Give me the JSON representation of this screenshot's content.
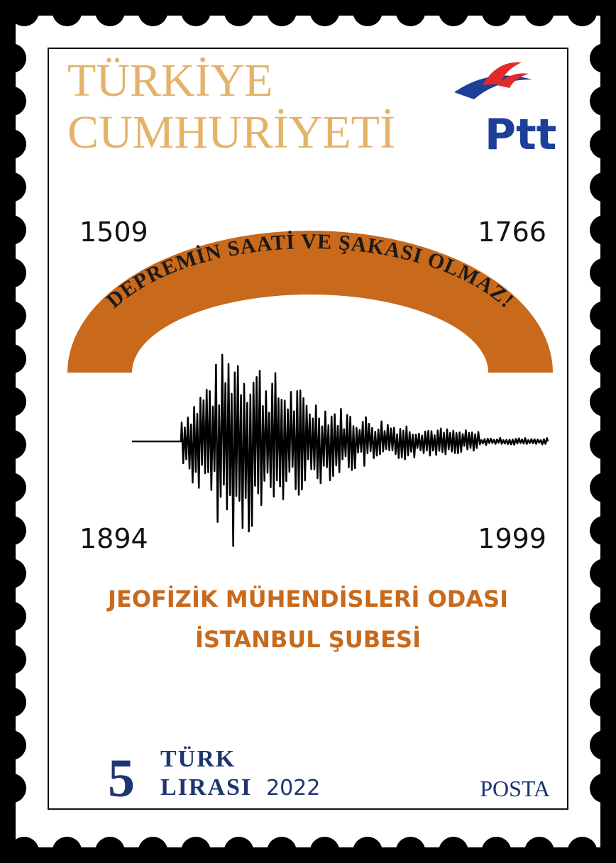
{
  "header": {
    "title_line1": "TÜRKİYE",
    "title_line2": "CUMHURİYETİ",
    "logo": "Ptt"
  },
  "years": {
    "top_left": "1509",
    "top_right": "1766",
    "bottom_left": "1894",
    "bottom_right": "1999"
  },
  "banner": "DEPREMİN SAATİ VE ŞAKASI OLMAZ!",
  "organization": {
    "line1": "JEOFİZİK MÜHENDİSLERİ ODASI",
    "line2": "İSTANBUL ŞUBESİ"
  },
  "footer": {
    "denomination": "5",
    "currency_line1": "TÜRK",
    "currency_line2": "LIRASI",
    "year": "2022",
    "label": "POSTA"
  }
}
